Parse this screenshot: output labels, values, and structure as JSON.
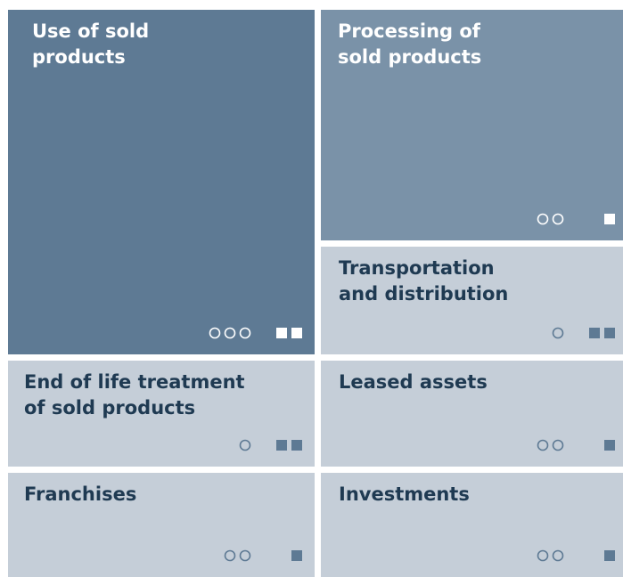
{
  "tiles": [
    {
      "label": "Use of sold products",
      "circles": 3,
      "squares": 2
    },
    {
      "label": "Processing of sold products",
      "circles": 2,
      "squares": 1
    },
    {
      "label": "Transportation and distribution",
      "circles": 1,
      "squares": 2
    },
    {
      "label": "End of life treatment of sold products",
      "circles": 1,
      "squares": 2
    },
    {
      "label": "Leased assets",
      "circles": 2,
      "squares": 1
    },
    {
      "label": "Franchises",
      "circles": 2,
      "squares": 1
    },
    {
      "label": "Investments",
      "circles": 2,
      "squares": 1
    }
  ]
}
